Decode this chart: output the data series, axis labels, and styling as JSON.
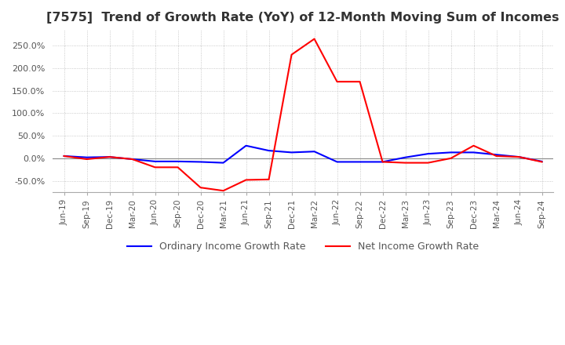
{
  "title": "[7575]  Trend of Growth Rate (YoY) of 12-Month Moving Sum of Incomes",
  "title_fontsize": 11.5,
  "ylim": [
    -75,
    285
  ],
  "yticks": [
    -50,
    0,
    50,
    100,
    150,
    200,
    250
  ],
  "background_color": "#ffffff",
  "grid_color": "#bbbbbb",
  "x_labels": [
    "Jun-19",
    "Sep-19",
    "Dec-19",
    "Mar-20",
    "Jun-20",
    "Sep-20",
    "Dec-20",
    "Mar-21",
    "Jun-21",
    "Sep-21",
    "Dec-21",
    "Mar-22",
    "Jun-22",
    "Sep-22",
    "Dec-22",
    "Mar-23",
    "Jun-23",
    "Sep-23",
    "Dec-23",
    "Mar-24",
    "Jun-24",
    "Sep-24"
  ],
  "ordinary_income": [
    5.0,
    2.0,
    3.0,
    -2.0,
    -7.0,
    -7.0,
    -8.0,
    -10.0,
    28.0,
    17.0,
    13.0,
    15.0,
    -8.0,
    -8.0,
    -8.0,
    2.0,
    10.0,
    13.0,
    13.0,
    8.0,
    3.0,
    -7.0
  ],
  "net_income": [
    5.0,
    -2.0,
    3.0,
    -2.0,
    -20.0,
    -20.0,
    -65.0,
    -72.0,
    -48.0,
    -47.0,
    230.0,
    265.0,
    170.0,
    170.0,
    -8.0,
    -10.0,
    -10.0,
    0.0,
    28.0,
    5.0,
    3.0,
    -8.0
  ],
  "ordinary_color": "#0000ff",
  "net_color": "#ff0000",
  "line_width": 1.5,
  "legend_ordinary": "Ordinary Income Growth Rate",
  "legend_net": "Net Income Growth Rate"
}
